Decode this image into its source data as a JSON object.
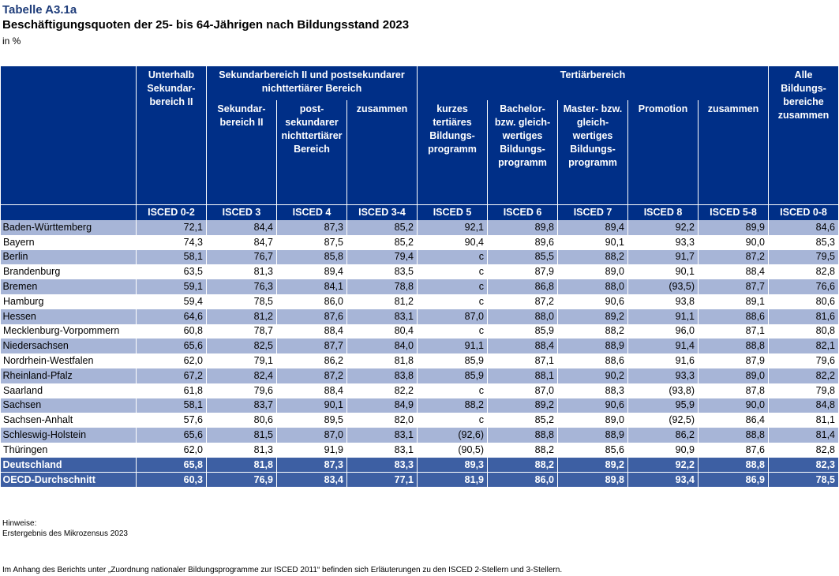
{
  "header": {
    "table_id": "Tabelle A3.1a",
    "title": "Beschäftigungsquoten der 25- bis 64-Jährigen nach Bildungsstand 2023",
    "unit": "in %"
  },
  "columns": {
    "below_secondary": "Unterhalb Sekundar-bereich II",
    "secondary_group": "Sekundarbereich II und postsekundarer nichttertiärer Bereich",
    "secondary_ii": "Sekundar-bereich II",
    "post_secondary": "post-sekundarer nichttertiärer Bereich",
    "secondary_total": "zusammen",
    "tertiary_group": "Tertiärbereich",
    "short_tertiary": "kurzes tertiäres Bildungs-programm",
    "bachelor": "Bachelor- bzw. gleich-wertiges Bildungs-programm",
    "master": "Master- bzw. gleich-wertiges Bildungs-programm",
    "doctorate": "Promotion",
    "tertiary_total": "zusammen",
    "all_levels": "Alle Bildungs-bereiche zusammen"
  },
  "isced": [
    "ISCED 0-2",
    "ISCED 3",
    "ISCED 4",
    "ISCED 3-4",
    "ISCED 5",
    "ISCED 6",
    "ISCED 7",
    "ISCED 8",
    "ISCED 5-8",
    "ISCED 0-8"
  ],
  "rows": [
    {
      "region": "Baden-Württemberg",
      "values": [
        "72,1",
        "84,4",
        "87,3",
        "85,2",
        "92,1",
        "89,8",
        "89,4",
        "92,2",
        "89,9",
        "84,6"
      ]
    },
    {
      "region": "Bayern",
      "values": [
        "74,3",
        "84,7",
        "87,5",
        "85,2",
        "90,4",
        "89,6",
        "90,1",
        "93,3",
        "90,0",
        "85,3"
      ]
    },
    {
      "region": "Berlin",
      "values": [
        "58,1",
        "76,7",
        "85,8",
        "79,4",
        "c",
        "85,5",
        "88,2",
        "91,7",
        "87,2",
        "79,5"
      ]
    },
    {
      "region": "Brandenburg",
      "values": [
        "63,5",
        "81,3",
        "89,4",
        "83,5",
        "c",
        "87,9",
        "89,0",
        "90,1",
        "88,4",
        "82,8"
      ]
    },
    {
      "region": "Bremen",
      "values": [
        "59,1",
        "76,3",
        "84,1",
        "78,8",
        "c",
        "86,8",
        "88,0",
        "(93,5)",
        "87,7",
        "76,6"
      ]
    },
    {
      "region": "Hamburg",
      "values": [
        "59,4",
        "78,5",
        "86,0",
        "81,2",
        "c",
        "87,2",
        "90,6",
        "93,8",
        "89,1",
        "80,6"
      ]
    },
    {
      "region": "Hessen",
      "values": [
        "64,6",
        "81,2",
        "87,6",
        "83,1",
        "87,0",
        "88,0",
        "89,2",
        "91,1",
        "88,6",
        "81,6"
      ]
    },
    {
      "region": "Mecklenburg-Vorpommern",
      "values": [
        "60,8",
        "78,7",
        "88,4",
        "80,4",
        "c",
        "85,9",
        "88,2",
        "96,0",
        "87,1",
        "80,8"
      ]
    },
    {
      "region": "Niedersachsen",
      "values": [
        "65,6",
        "82,5",
        "87,7",
        "84,0",
        "91,1",
        "88,4",
        "88,9",
        "91,4",
        "88,8",
        "82,1"
      ]
    },
    {
      "region": "Nordrhein-Westfalen",
      "values": [
        "62,0",
        "79,1",
        "86,2",
        "81,8",
        "85,9",
        "87,1",
        "88,6",
        "91,6",
        "87,9",
        "79,6"
      ]
    },
    {
      "region": "Rheinland-Pfalz",
      "values": [
        "67,2",
        "82,4",
        "87,2",
        "83,8",
        "85,9",
        "88,1",
        "90,2",
        "93,3",
        "89,0",
        "82,2"
      ]
    },
    {
      "region": "Saarland",
      "values": [
        "61,8",
        "79,6",
        "88,4",
        "82,2",
        "c",
        "87,0",
        "88,3",
        "(93,8)",
        "87,8",
        "79,8"
      ]
    },
    {
      "region": "Sachsen",
      "values": [
        "58,1",
        "83,7",
        "90,1",
        "84,9",
        "88,2",
        "89,2",
        "90,6",
        "95,9",
        "90,0",
        "84,8"
      ]
    },
    {
      "region": "Sachsen-Anhalt",
      "values": [
        "57,6",
        "80,6",
        "89,5",
        "82,0",
        "c",
        "85,2",
        "89,0",
        "(92,5)",
        "86,4",
        "81,1"
      ]
    },
    {
      "region": "Schleswig-Holstein",
      "values": [
        "65,6",
        "81,5",
        "87,0",
        "83,1",
        "(92,6)",
        "88,8",
        "88,9",
        "86,2",
        "88,8",
        "81,4"
      ]
    },
    {
      "region": "Thüringen",
      "values": [
        "62,0",
        "81,3",
        "91,9",
        "83,1",
        "(90,5)",
        "88,2",
        "85,6",
        "90,9",
        "87,6",
        "82,8"
      ]
    }
  ],
  "totals": [
    {
      "region": "Deutschland",
      "values": [
        "65,8",
        "81,8",
        "87,3",
        "83,3",
        "89,3",
        "88,2",
        "89,2",
        "92,2",
        "88,8",
        "82,3"
      ]
    },
    {
      "region": "OECD-Durchschnitt",
      "values": [
        "60,3",
        "76,9",
        "83,4",
        "77,1",
        "81,9",
        "86,0",
        "89,8",
        "93,4",
        "86,9",
        "78,5"
      ]
    }
  ],
  "notes": {
    "heading": "Hinweise:",
    "line1": "Erstergebnis des Mikrozensus 2023",
    "line2": "Im Anhang des Berichts unter „Zuordnung nationaler Bildungsprogramme zur ISCED 2011“ befinden sich Erläuterungen zu den ISCED 2-Stellern und 3-Stellern."
  },
  "colors": {
    "header_bg": "#002f87",
    "alt_row_bg": "#a7b5d7",
    "total_row_bg": "#3d5fa3",
    "title_color": "#1f3d7a"
  }
}
